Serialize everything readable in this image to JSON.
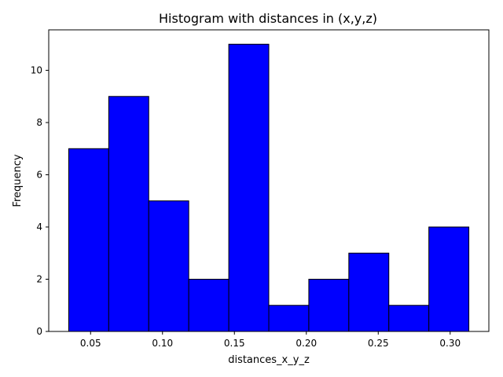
{
  "chart_data": {
    "type": "bar",
    "subtype": "histogram",
    "title": "Histogram with distances in (x,y,z)",
    "xlabel": "distances_x_y_z",
    "ylabel": "Frequency",
    "bin_edges": [
      0.0348,
      0.06262,
      0.09044,
      0.11826,
      0.14608,
      0.1739,
      0.20172,
      0.22954,
      0.25736,
      0.28518,
      0.313
    ],
    "values": [
      7,
      9,
      5,
      2,
      11,
      1,
      2,
      3,
      1,
      4
    ],
    "xlim": [
      0.0209,
      0.3269
    ],
    "ylim": [
      0,
      11.55
    ],
    "xticks": [
      0.05,
      0.1,
      0.15,
      0.2,
      0.25,
      0.3
    ],
    "xtick_labels": [
      "0.05",
      "0.10",
      "0.15",
      "0.20",
      "0.25",
      "0.30"
    ],
    "yticks": [
      0,
      2,
      4,
      6,
      8,
      10
    ],
    "ytick_labels": [
      "0",
      "2",
      "4",
      "6",
      "8",
      "10"
    ],
    "bar_color": "#0000ff",
    "edge_color": "#000000",
    "grid": false,
    "legend": "none"
  }
}
